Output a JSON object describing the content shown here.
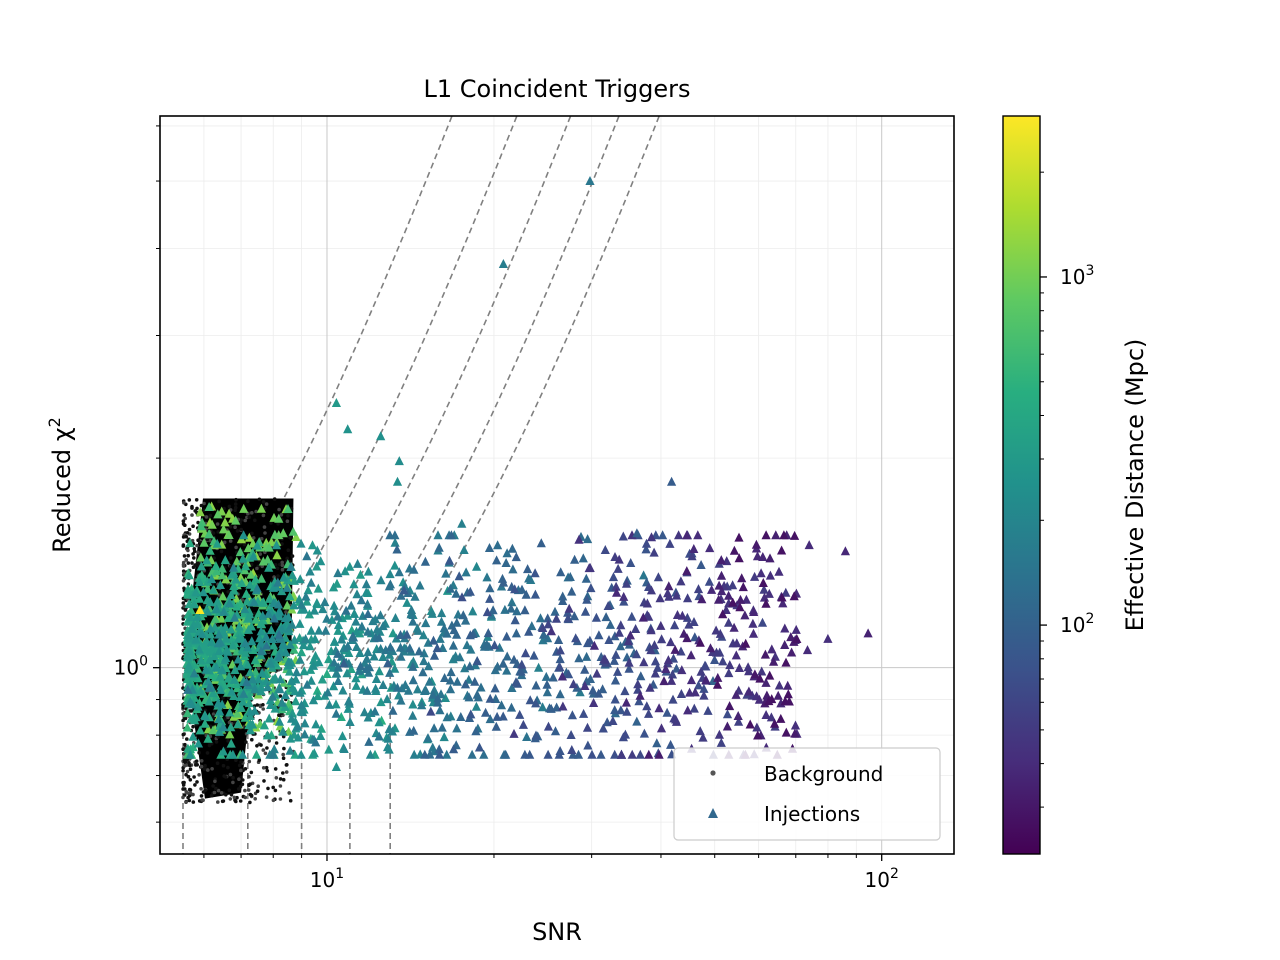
{
  "chart_data": {
    "type": "scatter",
    "title": "L1 Coincident Triggers",
    "xlabel": "SNR",
    "ylabel": "Reduced χ",
    "ylabel_sup": "2",
    "xscale": "log",
    "yscale": "log",
    "xlim": [
      5.0,
      135
    ],
    "ylim": [
      0.54,
      6.2
    ],
    "x_ticks": [
      {
        "base": "10",
        "exp": "1",
        "value": 10
      },
      {
        "base": "10",
        "exp": "2",
        "value": 100
      }
    ],
    "y_ticks": [
      {
        "base": "10",
        "exp": "0",
        "value": 1
      }
    ],
    "grid": true,
    "legend": {
      "placement": "lower-right",
      "entries": [
        {
          "label": "Background",
          "marker": "dot",
          "color": "#555555"
        },
        {
          "label": "Injections",
          "marker": "triangle",
          "color": "#31688e"
        }
      ]
    },
    "colorbar": {
      "label": "Effective Distance (Mpc)",
      "colormap": "viridis",
      "scale": "log",
      "range": [
        22,
        2900
      ],
      "ticks": [
        {
          "base": "10",
          "exp": "2",
          "value": 100
        },
        {
          "base": "10",
          "exp": "3",
          "value": 1000
        }
      ]
    },
    "contour_curves": {
      "style": "dashed",
      "color": "#808080",
      "snr_thresholds": [
        5.5,
        7.2,
        9.0,
        11.0,
        13.0
      ]
    },
    "background_region": {
      "snr_range": [
        5.5,
        8.7
      ],
      "chisq_range": [
        0.64,
        1.75
      ],
      "color": "#000000"
    },
    "injections_highlight": [
      {
        "snr": 29.8,
        "chisq": 5.0,
        "dist": 150
      },
      {
        "snr": 20.8,
        "chisq": 3.8,
        "dist": 170
      },
      {
        "snr": 10.4,
        "chisq": 2.4,
        "dist": 300
      },
      {
        "snr": 10.9,
        "chisq": 2.2,
        "dist": 260
      },
      {
        "snr": 12.5,
        "chisq": 2.15,
        "dist": 250
      },
      {
        "snr": 13.5,
        "chisq": 1.98,
        "dist": 230
      },
      {
        "snr": 13.4,
        "chisq": 1.85,
        "dist": 240
      },
      {
        "snr": 41.8,
        "chisq": 1.85,
        "dist": 90
      },
      {
        "snr": 36.2,
        "chisq": 1.56,
        "dist": 100
      },
      {
        "snr": 29.5,
        "chisq": 1.53,
        "dist": 120
      },
      {
        "snr": 17.5,
        "chisq": 1.61,
        "dist": 180
      },
      {
        "snr": 74,
        "chisq": 1.5,
        "dist": 40
      },
      {
        "snr": 86,
        "chisq": 1.47,
        "dist": 38
      },
      {
        "snr": 94.5,
        "chisq": 1.12,
        "dist": 35
      },
      {
        "snr": 73.5,
        "chisq": 1.06,
        "dist": 40
      },
      {
        "snr": 80,
        "chisq": 1.1,
        "dist": 42
      },
      {
        "snr": 10.4,
        "chisq": 0.72,
        "dist": 250
      },
      {
        "snr": 5.9,
        "chisq": 1.21,
        "dist": 2800
      }
    ]
  }
}
